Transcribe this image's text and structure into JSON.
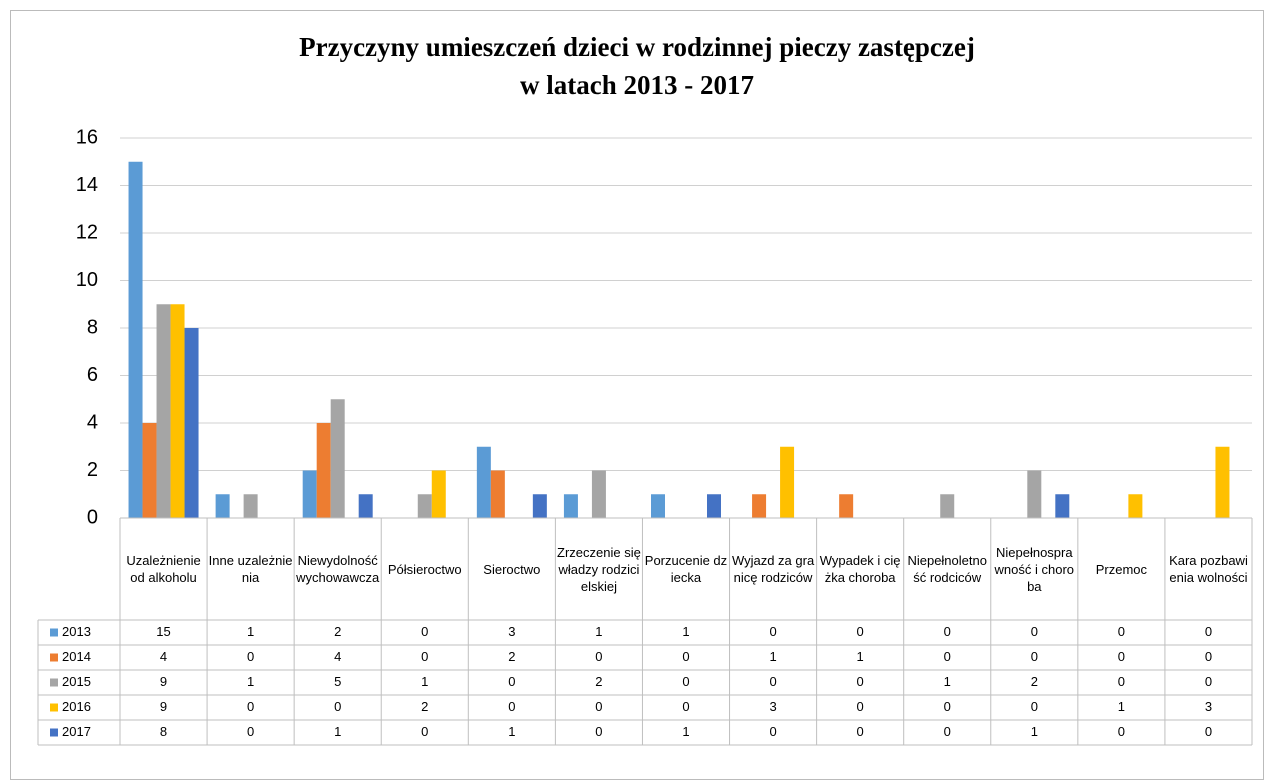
{
  "chart_data": {
    "type": "bar",
    "title": [
      "Przyczyny umieszczeń dzieci w rodzinnej pieczy zastępczej",
      "w latach 2013 - 2017"
    ],
    "categories": [
      "Uzależnienie od alkoholu",
      "Inne uzależnienia",
      "Niewydolność wychowawcza",
      "Półsieroctwo",
      "Sieroctwo",
      "Zrzeczenie się władzy rodzicielskiej",
      "Porzucenie dziecka",
      "Wyjazd za granicę rodziców",
      "Wypadek i ciężka choroba",
      "Niepełnoletność rodciców",
      "Niepełnosprawność i choroba",
      "Przemoc",
      "Kara pozbawienia wolności"
    ],
    "series": [
      {
        "name": "2013",
        "color": "#5b9bd5",
        "values": [
          15,
          1,
          2,
          0,
          3,
          1,
          1,
          0,
          0,
          0,
          0,
          0,
          0
        ]
      },
      {
        "name": "2014",
        "color": "#ed7d31",
        "values": [
          4,
          0,
          4,
          0,
          2,
          0,
          0,
          1,
          1,
          0,
          0,
          0,
          0
        ]
      },
      {
        "name": "2015",
        "color": "#a5a5a5",
        "values": [
          9,
          1,
          5,
          1,
          0,
          2,
          0,
          0,
          0,
          1,
          2,
          0,
          0
        ]
      },
      {
        "name": "2016",
        "color": "#ffc000",
        "values": [
          9,
          0,
          0,
          2,
          0,
          0,
          0,
          3,
          0,
          0,
          0,
          1,
          3
        ]
      },
      {
        "name": "2017",
        "color": "#4472c4",
        "values": [
          8,
          0,
          1,
          0,
          1,
          0,
          1,
          0,
          0,
          0,
          1,
          0,
          0
        ]
      }
    ],
    "ylim": [
      0,
      16
    ],
    "yticks": [
      0,
      2,
      4,
      6,
      8,
      10,
      12,
      14,
      16
    ],
    "grid": true,
    "data_table": true
  }
}
